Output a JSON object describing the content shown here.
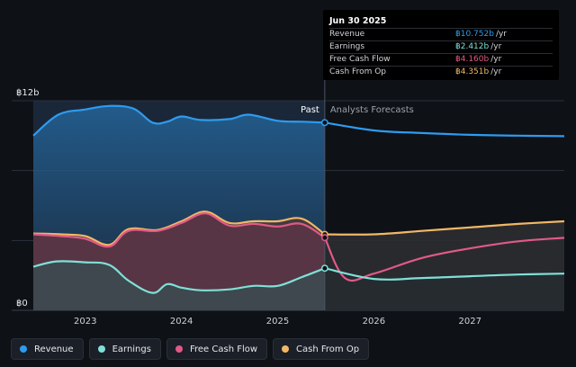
{
  "colors": {
    "revenue": "#2e9bf0",
    "earnings": "#7fe0d8",
    "free_cash_flow": "#e05a86",
    "cash_from_op": "#f2b766",
    "background": "#0e1116"
  },
  "tooltip": {
    "date": "Jun 30 2025",
    "rows": [
      {
        "name": "Revenue",
        "value": "฿10.752b",
        "unit": "/yr"
      },
      {
        "name": "Earnings",
        "value": "฿2.412b",
        "unit": "/yr"
      },
      {
        "name": "Free Cash Flow",
        "value": "฿4.160b",
        "unit": "/yr"
      },
      {
        "name": "Cash From Op",
        "value": "฿4.351b",
        "unit": "/yr"
      }
    ]
  },
  "legend": {
    "items": [
      {
        "label": "Revenue",
        "icon": "revenue-dot-icon"
      },
      {
        "label": "Earnings",
        "icon": "earnings-dot-icon"
      },
      {
        "label": "Free Cash Flow",
        "icon": "free-cash-flow-dot-icon"
      },
      {
        "label": "Cash From Op",
        "icon": "cash-from-op-dot-icon"
      }
    ]
  },
  "chart_data": {
    "type": "area",
    "title": "",
    "y_unit": "THB billions",
    "ylim": [
      0,
      12
    ],
    "y_tick_labels": [
      {
        "value": 12,
        "label": "฿12b"
      },
      {
        "value": 0,
        "label": "฿0"
      }
    ],
    "xlim": [
      2022.46,
      2027.98
    ],
    "x_ticks": [
      2023,
      2024,
      2025,
      2026,
      2027
    ],
    "x_tick_labels": [
      "2023",
      "2024",
      "2025",
      "2026",
      "2027"
    ],
    "divider_x": 2025.49,
    "past_label": "Past",
    "forecast_label": "Analysts Forecasts",
    "series": [
      {
        "name": "Revenue",
        "key": "revenue",
        "past": [
          [
            2022.46,
            10.0
          ],
          [
            2022.72,
            11.2
          ],
          [
            2023.0,
            11.5
          ],
          [
            2023.25,
            11.7
          ],
          [
            2023.5,
            11.55
          ],
          [
            2023.7,
            10.75
          ],
          [
            2023.85,
            10.8
          ],
          [
            2024.0,
            11.1
          ],
          [
            2024.2,
            10.9
          ],
          [
            2024.5,
            10.95
          ],
          [
            2024.7,
            11.2
          ],
          [
            2025.0,
            10.85
          ],
          [
            2025.25,
            10.8
          ],
          [
            2025.49,
            10.75
          ]
        ],
        "forecast": [
          [
            2025.49,
            10.75
          ],
          [
            2026.0,
            10.3
          ],
          [
            2026.5,
            10.15
          ],
          [
            2027.0,
            10.05
          ],
          [
            2027.5,
            10.0
          ],
          [
            2027.98,
            9.97
          ]
        ]
      },
      {
        "name": "Earnings",
        "key": "earnings",
        "past": [
          [
            2022.46,
            2.5
          ],
          [
            2022.7,
            2.8
          ],
          [
            2023.0,
            2.75
          ],
          [
            2023.25,
            2.6
          ],
          [
            2023.45,
            1.7
          ],
          [
            2023.7,
            1.0
          ],
          [
            2023.85,
            1.5
          ],
          [
            2024.0,
            1.3
          ],
          [
            2024.2,
            1.15
          ],
          [
            2024.5,
            1.2
          ],
          [
            2024.75,
            1.4
          ],
          [
            2025.0,
            1.4
          ],
          [
            2025.25,
            1.9
          ],
          [
            2025.49,
            2.41
          ]
        ],
        "forecast": [
          [
            2025.49,
            2.41
          ],
          [
            2026.0,
            1.8
          ],
          [
            2026.5,
            1.85
          ],
          [
            2027.0,
            1.95
          ],
          [
            2027.5,
            2.05
          ],
          [
            2027.98,
            2.1
          ]
        ]
      },
      {
        "name": "Free Cash Flow",
        "key": "free_cash_flow",
        "past": [
          [
            2022.46,
            4.35
          ],
          [
            2022.75,
            4.25
          ],
          [
            2023.0,
            4.1
          ],
          [
            2023.25,
            3.65
          ],
          [
            2023.45,
            4.55
          ],
          [
            2023.75,
            4.55
          ],
          [
            2024.0,
            5.0
          ],
          [
            2024.25,
            5.55
          ],
          [
            2024.5,
            4.85
          ],
          [
            2024.75,
            4.95
          ],
          [
            2025.0,
            4.8
          ],
          [
            2025.25,
            4.95
          ],
          [
            2025.49,
            4.16
          ]
        ],
        "forecast": [
          [
            2025.49,
            4.16
          ],
          [
            2025.7,
            1.85
          ],
          [
            2026.0,
            2.1
          ],
          [
            2026.5,
            3.0
          ],
          [
            2027.0,
            3.55
          ],
          [
            2027.5,
            3.95
          ],
          [
            2027.98,
            4.15
          ]
        ]
      },
      {
        "name": "Cash From Op",
        "key": "cash_from_op",
        "past": [
          [
            2022.46,
            4.4
          ],
          [
            2022.75,
            4.35
          ],
          [
            2023.0,
            4.25
          ],
          [
            2023.25,
            3.75
          ],
          [
            2023.45,
            4.65
          ],
          [
            2023.75,
            4.6
          ],
          [
            2024.0,
            5.1
          ],
          [
            2024.25,
            5.65
          ],
          [
            2024.5,
            5.0
          ],
          [
            2024.75,
            5.1
          ],
          [
            2025.0,
            5.1
          ],
          [
            2025.25,
            5.25
          ],
          [
            2025.49,
            4.35
          ]
        ],
        "forecast": [
          [
            2025.49,
            4.35
          ],
          [
            2026.0,
            4.35
          ],
          [
            2026.5,
            4.55
          ],
          [
            2027.0,
            4.75
          ],
          [
            2027.5,
            4.95
          ],
          [
            2027.98,
            5.1
          ]
        ]
      }
    ]
  }
}
